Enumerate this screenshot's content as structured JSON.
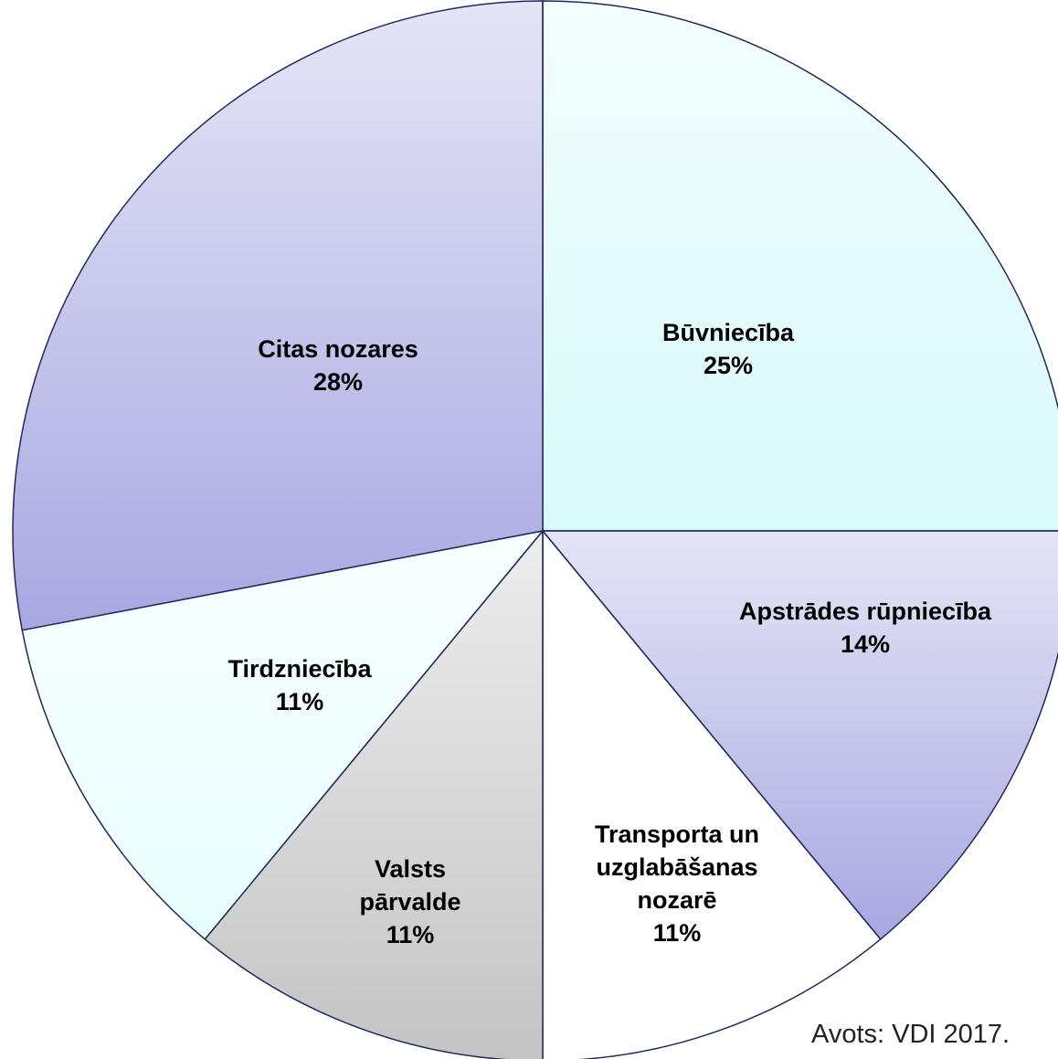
{
  "chart_data": {
    "type": "pie",
    "categories": [
      "Būvniecība",
      "Apstrādes rūpniecība",
      "Transporta un uzglabāšanas nozarē",
      "Valsts pārvalde",
      "Tirdzniecība",
      "Citas nozares"
    ],
    "values": [
      25,
      14,
      11,
      11,
      11,
      28
    ],
    "value_labels": [
      "25%",
      "14%",
      "11%",
      "11%",
      "11%",
      "28%"
    ],
    "colors": [
      "#d8fafa",
      "#a8a8e2",
      "#ffffff",
      "#c4c4c4",
      "#e8fefe",
      "#a8a8e2"
    ],
    "annotation": "Avots: VDI 2017."
  }
}
